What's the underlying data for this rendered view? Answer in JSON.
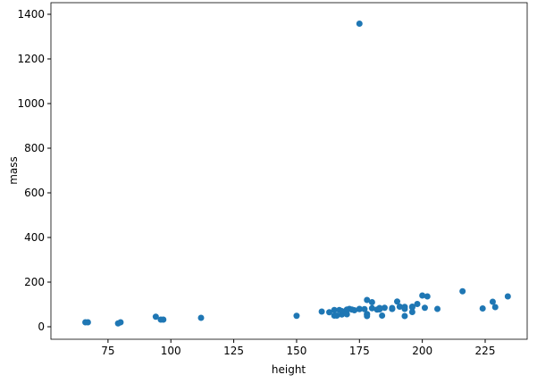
{
  "chart_data": {
    "type": "scatter",
    "xlabel": "height",
    "ylabel": "mass",
    "color": "#1f77b4",
    "x": [
      66,
      67,
      79,
      80,
      94,
      96,
      97,
      112,
      150,
      160,
      163,
      165,
      165,
      166,
      167,
      168,
      168,
      170,
      170,
      170,
      171,
      172,
      173,
      175,
      175,
      175,
      177,
      178,
      178,
      178,
      178,
      180,
      180,
      182,
      183,
      183,
      183,
      183,
      184,
      185,
      188,
      188,
      188,
      190,
      191,
      193,
      193,
      193,
      196,
      196,
      196,
      198,
      200,
      201,
      202,
      206,
      216,
      224,
      228,
      229,
      234
    ],
    "values": [
      20,
      20,
      15,
      20,
      45,
      32,
      32,
      40,
      49,
      68,
      65,
      75,
      50,
      50,
      75,
      55,
      70,
      77,
      75,
      56,
      80,
      77,
      74,
      1358,
      79,
      80,
      79,
      120,
      57,
      55,
      48,
      110,
      83,
      77,
      84,
      78,
      79,
      80,
      50,
      85,
      84,
      80,
      80,
      113,
      90,
      89,
      80,
      48,
      66,
      87,
      90,
      102,
      140,
      85,
      136,
      80,
      159,
      82,
      112,
      88,
      136
    ],
    "xlim": [
      52.3,
      241.7
    ],
    "ylim": [
      -56,
      1452
    ],
    "xticks": [
      75,
      100,
      125,
      150,
      175,
      200,
      225
    ],
    "yticks": [
      0,
      200,
      400,
      600,
      800,
      1000,
      1200,
      1400
    ]
  }
}
